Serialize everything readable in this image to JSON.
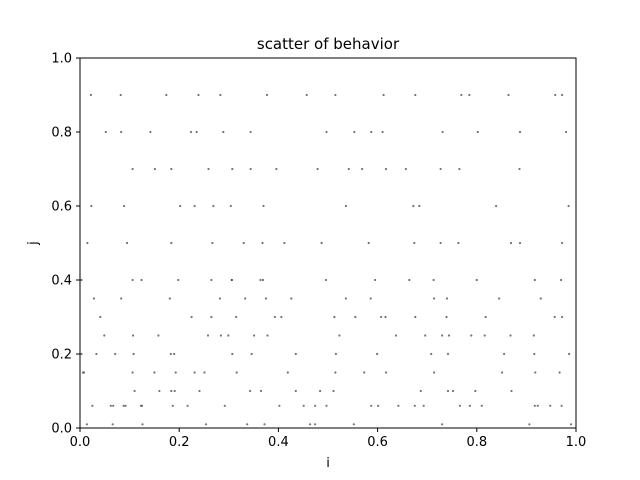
{
  "chart_data": {
    "type": "scatter",
    "title": "scatter of behavior",
    "xlabel": "i",
    "ylabel": "j",
    "xlim": [
      0,
      1
    ],
    "ylim": [
      0,
      1
    ],
    "xticks": [
      "0.0",
      "0.2",
      "0.4",
      "0.6",
      "0.8",
      "1.0"
    ],
    "yticks": [
      "0.0",
      "0.2",
      "0.4",
      "0.6",
      "0.8",
      "1.0"
    ],
    "grid": false,
    "legend": "none",
    "point_color": "#444444",
    "point_count": 2000,
    "points_x": [
      0.014,
      0.066,
      0.126,
      0.254,
      0.337,
      0.372,
      0.464,
      0.474,
      0.552,
      0.73,
      0.906,
      0.99,
      0.025,
      0.062,
      0.067,
      0.088,
      0.092,
      0.123,
      0.125,
      0.187,
      0.217,
      0.292,
      0.402,
      0.451,
      0.474,
      0.497,
      0.587,
      0.601,
      0.642,
      0.675,
      0.693,
      0.766,
      0.786,
      0.81,
      0.917,
      0.923,
      0.948,
      0.971,
      0.11,
      0.16,
      0.184,
      0.191,
      0.241,
      0.343,
      0.365,
      0.435,
      0.484,
      0.511,
      0.687,
      0.742,
      0.752,
      0.797,
      0.87,
      0.006,
      0.008,
      0.106,
      0.15,
      0.193,
      0.231,
      0.251,
      0.316,
      0.419,
      0.515,
      0.573,
      0.617,
      0.714,
      0.851,
      0.918,
      0.967,
      0.003,
      0.033,
      0.071,
      0.108,
      0.183,
      0.19,
      0.307,
      0.346,
      0.435,
      0.516,
      0.599,
      0.708,
      0.742,
      0.855,
      0.916,
      0.986,
      0.049,
      0.107,
      0.158,
      0.258,
      0.284,
      0.299,
      0.351,
      0.378,
      0.523,
      0.637,
      0.696,
      0.73,
      0.744,
      0.789,
      0.816,
      0.868,
      0.915,
      0.041,
      0.225,
      0.265,
      0.315,
      0.393,
      0.406,
      0.513,
      0.555,
      0.607,
      0.616,
      0.676,
      0.739,
      0.818,
      0.957,
      0.972,
      0.028,
      0.083,
      0.181,
      0.282,
      0.333,
      0.375,
      0.426,
      0.536,
      0.586,
      0.714,
      0.74,
      0.845,
      0.929,
      0.003,
      0.106,
      0.124,
      0.198,
      0.265,
      0.306,
      0.306,
      0.364,
      0.369,
      0.496,
      0.595,
      0.664,
      0.713,
      0.8,
      0.917,
      0.97,
      0.015,
      0.095,
      0.184,
      0.267,
      0.33,
      0.368,
      0.412,
      0.487,
      0.582,
      0.674,
      0.727,
      0.763,
      0.869,
      0.887,
      0.972,
      0.023,
      0.089,
      0.202,
      0.231,
      0.269,
      0.304,
      0.37,
      0.536,
      0.672,
      0.684,
      0.839,
      0.985,
      0.106,
      0.151,
      0.184,
      0.259,
      0.307,
      0.344,
      0.396,
      0.479,
      0.542,
      0.569,
      0.617,
      0.657,
      0.727,
      0.765,
      0.886,
      0.052,
      0.083,
      0.142,
      0.224,
      0.235,
      0.289,
      0.344,
      0.497,
      0.553,
      0.587,
      0.61,
      0.731,
      0.802,
      0.887,
      0.98,
      0.022,
      0.082,
      0.174,
      0.239,
      0.283,
      0.377,
      0.457,
      0.515,
      0.612,
      0.676,
      0.769,
      0.785,
      0.864,
      0.958,
      0.972
    ],
    "points_y": [
      0.01,
      0.01,
      0.01,
      0.01,
      0.01,
      0.01,
      0.01,
      0.01,
      0.01,
      0.01,
      0.01,
      0.01,
      0.06,
      0.06,
      0.06,
      0.06,
      0.06,
      0.06,
      0.06,
      0.06,
      0.06,
      0.06,
      0.06,
      0.06,
      0.06,
      0.06,
      0.06,
      0.06,
      0.06,
      0.06,
      0.06,
      0.06,
      0.06,
      0.06,
      0.06,
      0.06,
      0.06,
      0.06,
      0.1,
      0.1,
      0.1,
      0.1,
      0.1,
      0.1,
      0.1,
      0.1,
      0.1,
      0.1,
      0.1,
      0.1,
      0.1,
      0.1,
      0.1,
      0.15,
      0.15,
      0.15,
      0.15,
      0.15,
      0.15,
      0.15,
      0.15,
      0.15,
      0.15,
      0.15,
      0.15,
      0.15,
      0.15,
      0.15,
      0.15,
      0.2,
      0.2,
      0.2,
      0.2,
      0.2,
      0.2,
      0.2,
      0.2,
      0.2,
      0.2,
      0.2,
      0.2,
      0.2,
      0.2,
      0.2,
      0.2,
      0.25,
      0.25,
      0.25,
      0.25,
      0.25,
      0.25,
      0.25,
      0.25,
      0.25,
      0.25,
      0.25,
      0.25,
      0.25,
      0.25,
      0.25,
      0.25,
      0.25,
      0.3,
      0.3,
      0.3,
      0.3,
      0.3,
      0.3,
      0.3,
      0.3,
      0.3,
      0.3,
      0.3,
      0.3,
      0.3,
      0.3,
      0.3,
      0.35,
      0.35,
      0.35,
      0.35,
      0.35,
      0.35,
      0.35,
      0.35,
      0.35,
      0.35,
      0.35,
      0.35,
      0.35,
      0.4,
      0.4,
      0.4,
      0.4,
      0.4,
      0.4,
      0.4,
      0.4,
      0.4,
      0.4,
      0.4,
      0.4,
      0.4,
      0.4,
      0.4,
      0.4,
      0.5,
      0.5,
      0.5,
      0.5,
      0.5,
      0.5,
      0.5,
      0.5,
      0.5,
      0.5,
      0.5,
      0.5,
      0.5,
      0.5,
      0.5,
      0.6,
      0.6,
      0.6,
      0.6,
      0.6,
      0.6,
      0.6,
      0.6,
      0.6,
      0.6,
      0.6,
      0.6,
      0.7,
      0.7,
      0.7,
      0.7,
      0.7,
      0.7,
      0.7,
      0.7,
      0.7,
      0.7,
      0.7,
      0.7,
      0.7,
      0.7,
      0.7,
      0.8,
      0.8,
      0.8,
      0.8,
      0.8,
      0.8,
      0.8,
      0.8,
      0.8,
      0.8,
      0.8,
      0.8,
      0.8,
      0.8,
      0.8,
      0.9,
      0.9,
      0.9,
      0.9,
      0.9,
      0.9,
      0.9,
      0.9,
      0.9,
      0.9,
      0.9,
      0.9,
      0.9,
      0.9,
      0.9
    ]
  }
}
